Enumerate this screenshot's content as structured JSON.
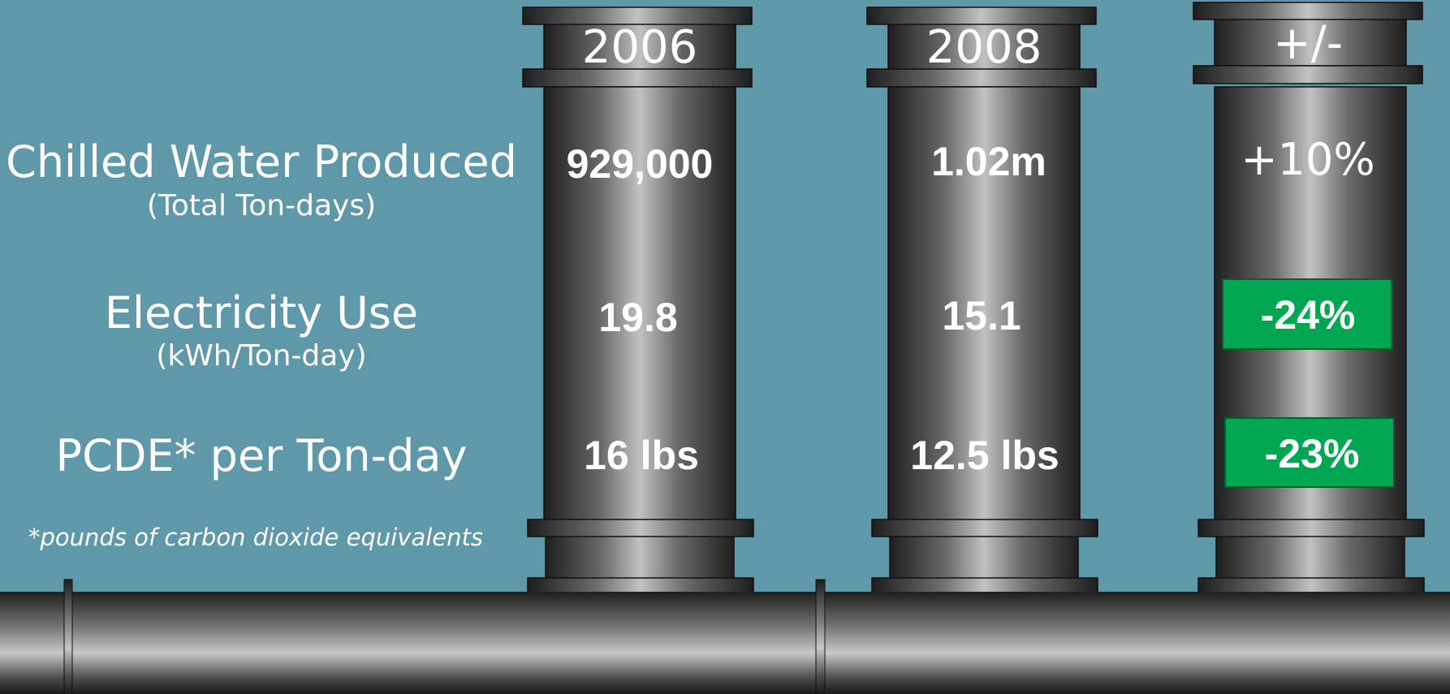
{
  "columns": [
    "2006",
    "2008",
    "+/-"
  ],
  "rows": [
    {
      "label": "Chilled Water Produced",
      "sublabel": "(Total Ton-days)",
      "values": [
        "929,000",
        "1.02m",
        "+10%"
      ]
    },
    {
      "label": "Electricity Use",
      "sublabel": "(kWh/Ton-day)",
      "values": [
        "19.8",
        "15.1",
        "-24%"
      ]
    },
    {
      "label": "PCDE* per Ton-day",
      "values": [
        "16 lbs",
        "12.5 lbs",
        "-23%"
      ]
    }
  ],
  "footnote": "*pounds of carbon dioxide equivalents"
}
